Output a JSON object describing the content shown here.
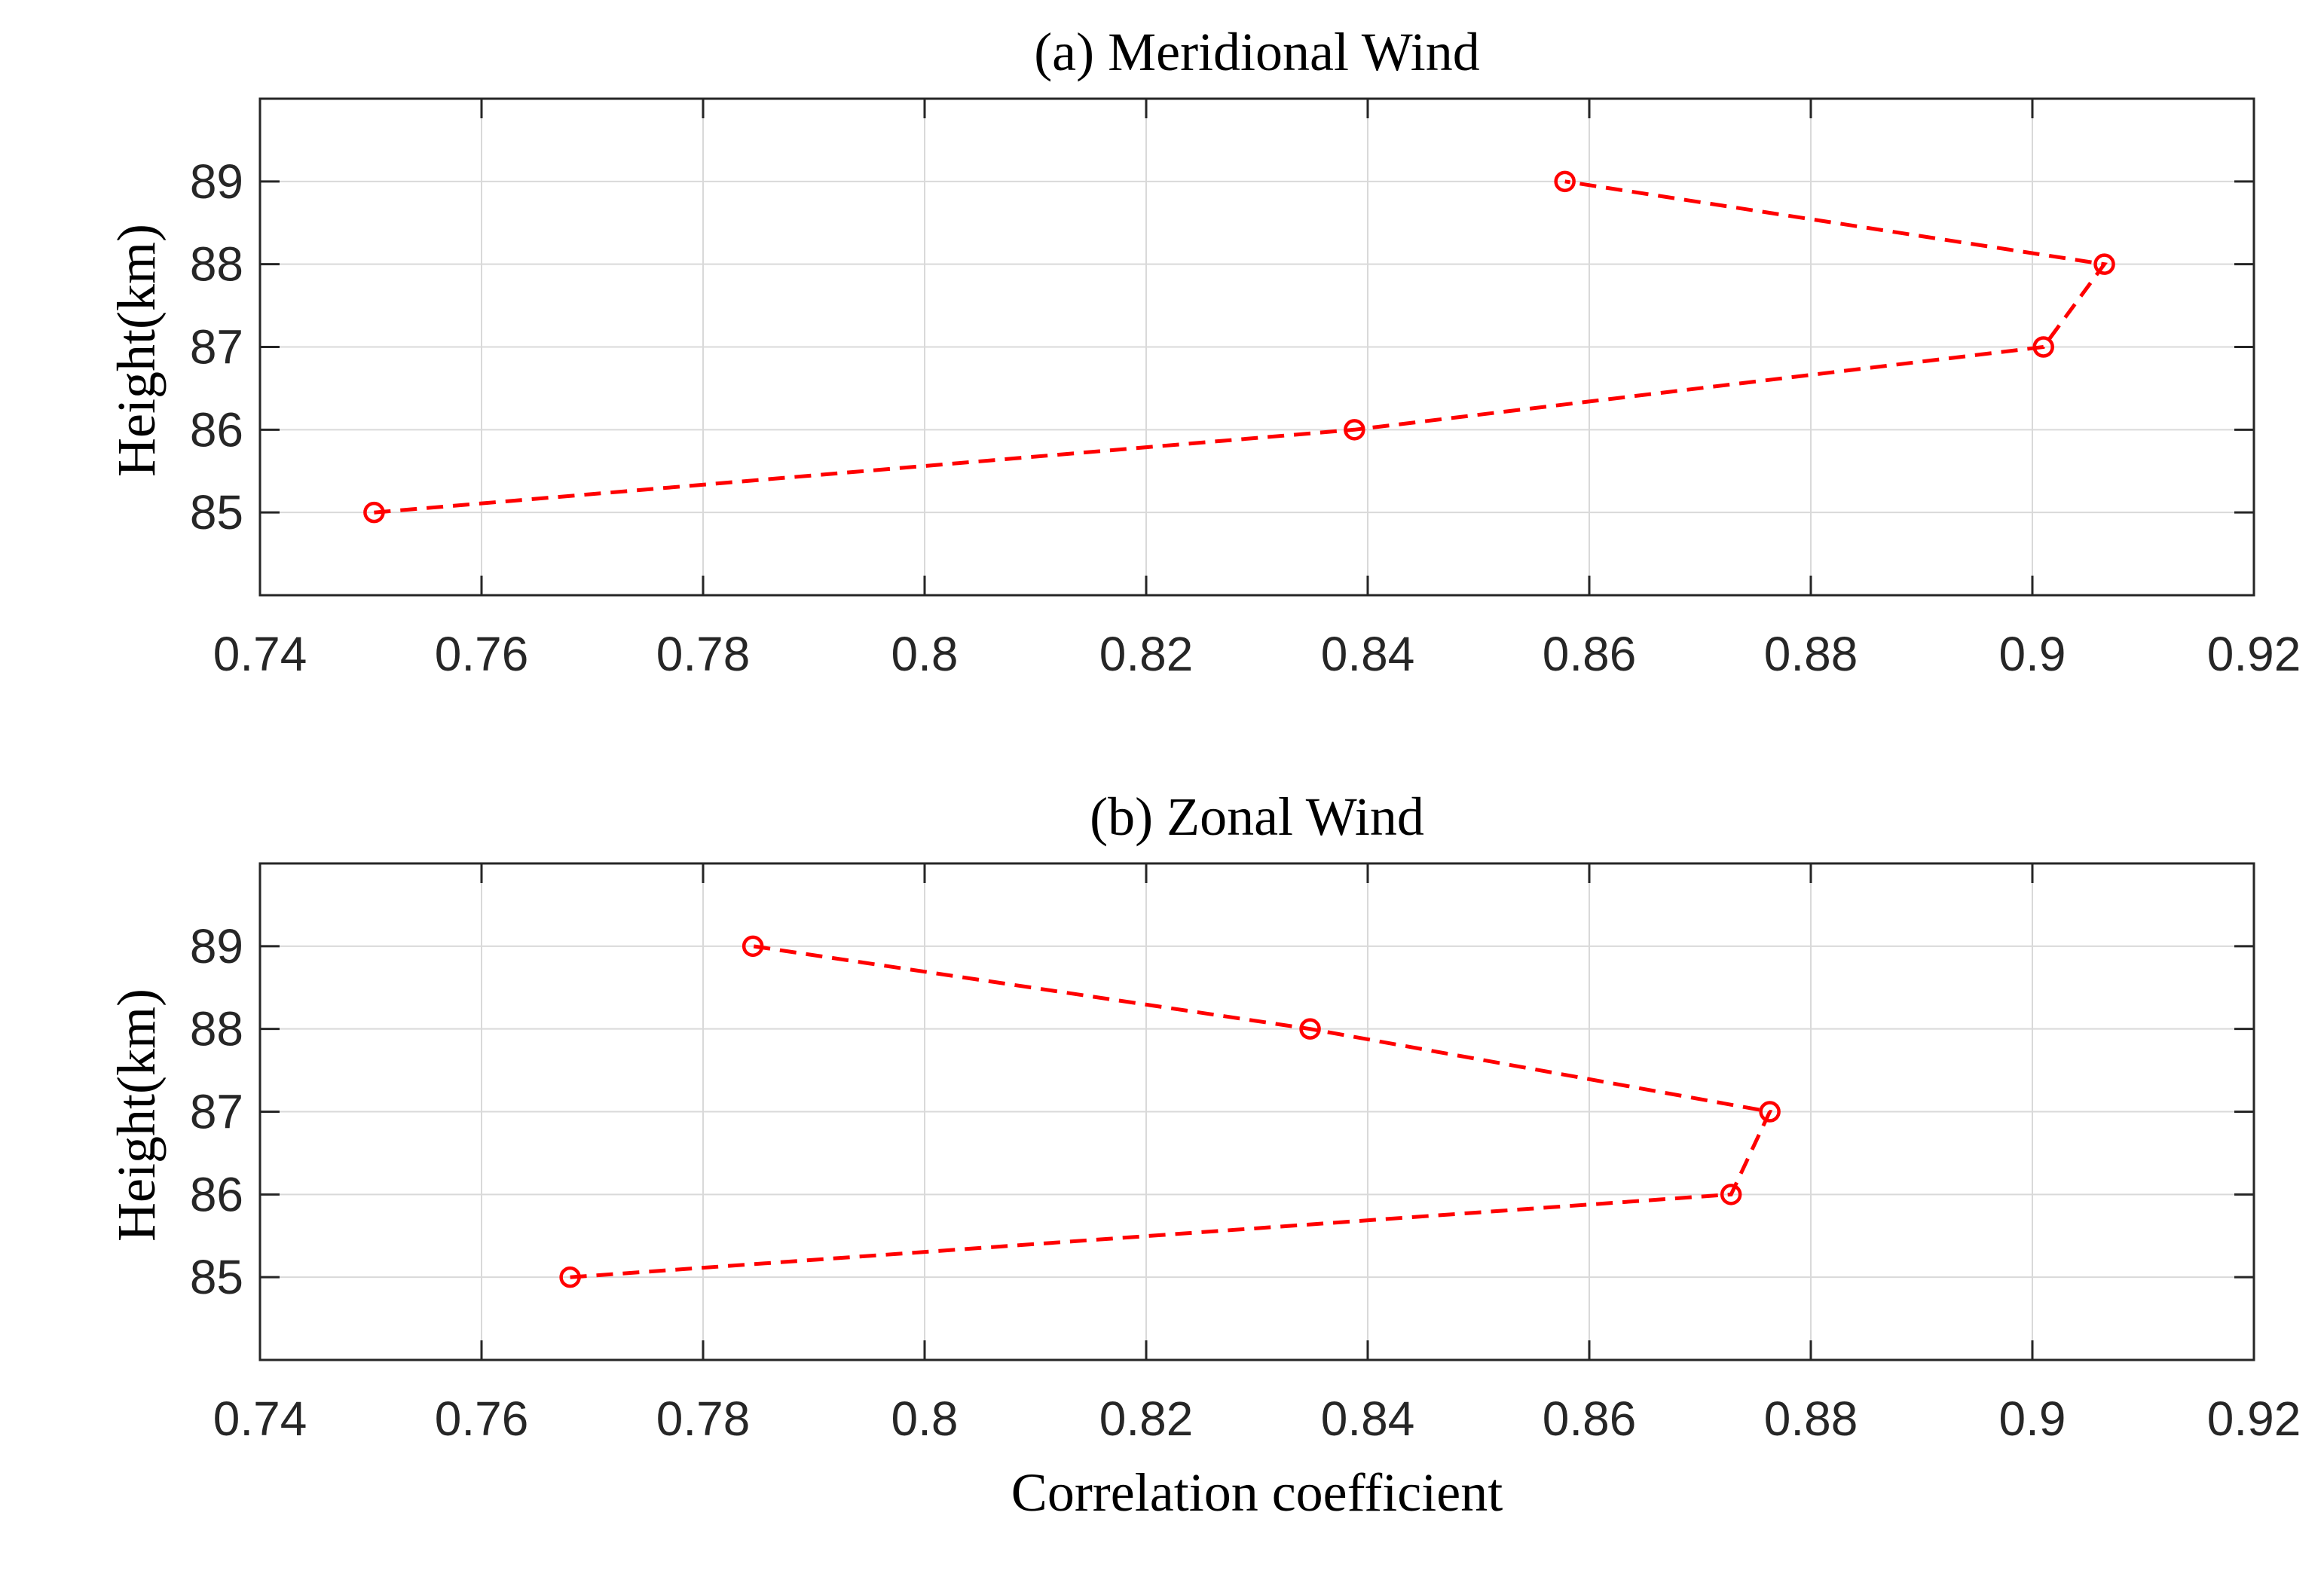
{
  "chart_data": [
    {
      "type": "line",
      "title": "(a) Meridional Wind",
      "xlabel": "",
      "ylabel": "Height(km)",
      "xlim": [
        0.74,
        0.92
      ],
      "ylim": [
        84,
        90
      ],
      "xticks": [
        0.74,
        0.76,
        0.78,
        0.8,
        0.82,
        0.84,
        0.86,
        0.88,
        0.9,
        0.92
      ],
      "xtick_labels": [
        "0.74",
        "0.76",
        "0.78",
        "0.8",
        "0.82",
        "0.84",
        "0.86",
        "0.88",
        "0.9",
        "0.92"
      ],
      "yticks": [
        85,
        86,
        87,
        88,
        89
      ],
      "ytick_labels": [
        "85",
        "86",
        "87",
        "88",
        "89"
      ],
      "grid": true,
      "series": [
        {
          "name": "Meridional Wind",
          "x": [
            0.7503,
            0.8388,
            0.901,
            0.9065,
            0.8578
          ],
          "y": [
            85,
            86,
            87,
            88,
            89
          ],
          "color": "#ff0000",
          "line_style": "dashed",
          "marker": "circle"
        }
      ]
    },
    {
      "type": "line",
      "title": "(b) Zonal Wind",
      "xlabel": "Correlation coefficient",
      "ylabel": "Height(km)",
      "xlim": [
        0.74,
        0.92
      ],
      "ylim": [
        84,
        90
      ],
      "xticks": [
        0.74,
        0.76,
        0.78,
        0.8,
        0.82,
        0.84,
        0.86,
        0.88,
        0.9,
        0.92
      ],
      "xtick_labels": [
        "0.74",
        "0.76",
        "0.78",
        "0.8",
        "0.82",
        "0.84",
        "0.86",
        "0.88",
        "0.9",
        "0.92"
      ],
      "yticks": [
        85,
        86,
        87,
        88,
        89
      ],
      "ytick_labels": [
        "85",
        "86",
        "87",
        "88",
        "89"
      ],
      "grid": true,
      "series": [
        {
          "name": "Zonal Wind",
          "x": [
            0.768,
            0.8728,
            0.8763,
            0.8348,
            0.7845
          ],
          "y": [
            85,
            86,
            87,
            88,
            89
          ],
          "color": "#ff0000",
          "line_style": "dashed",
          "marker": "circle"
        }
      ]
    }
  ]
}
